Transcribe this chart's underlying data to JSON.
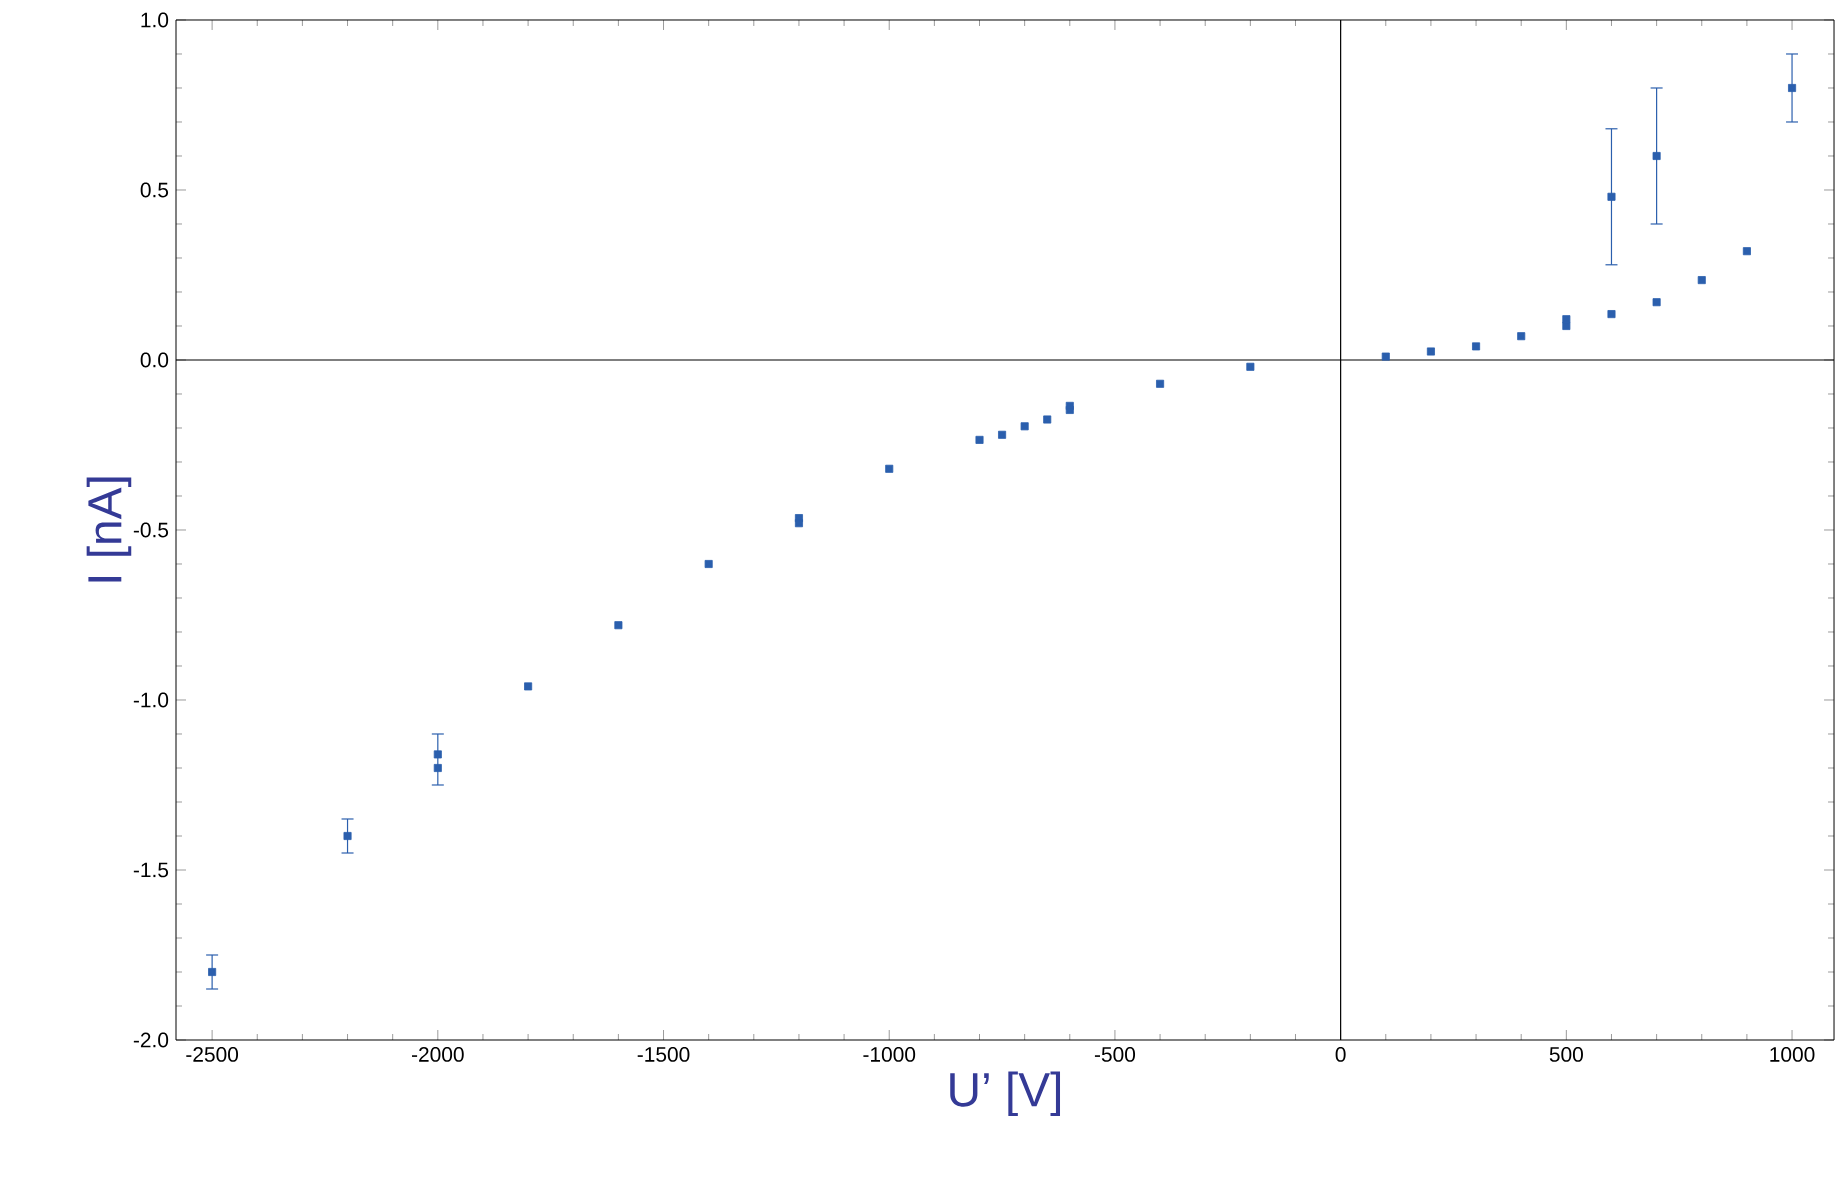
{
  "chart_data": {
    "type": "scatter",
    "xlabel": "U’ [V]",
    "ylabel": "I [nA]",
    "xlim": [
      -2580,
      1093
    ],
    "ylim": [
      -2.0,
      1.0
    ],
    "xticks": [
      -2500,
      -2000,
      -1500,
      -1000,
      -500,
      0,
      500,
      1000
    ],
    "yticks": [
      {
        "value": -2.0,
        "label": "-2.0"
      },
      {
        "value": -1.5,
        "label": "-1.5"
      },
      {
        "value": -1.0,
        "label": "-1.0"
      },
      {
        "value": -0.5,
        "label": "-0.5"
      },
      {
        "value": 0,
        "label": "0.0"
      },
      {
        "value": 0.5,
        "label": "0.5"
      },
      {
        "value": 1.0,
        "label": "1.0"
      }
    ],
    "marker": "square",
    "series": [
      {
        "color": "#2b5fad",
        "x": [
          -2500,
          -2200,
          -2000,
          -2000,
          -1800,
          -1600,
          -1400,
          -1200,
          -1200,
          -1000,
          -800,
          -750,
          -700,
          -650,
          -600,
          -600,
          -400,
          -200,
          100,
          200,
          300,
          400,
          500,
          500,
          600,
          600,
          700,
          700,
          800,
          900,
          1000
        ],
        "values": [
          -1.8,
          -1.4,
          -1.16,
          -1.2,
          -0.96,
          -0.78,
          -0.6,
          -0.465,
          -0.48,
          -0.32,
          -0.235,
          -0.22,
          -0.195,
          -0.175,
          -0.147,
          -0.135,
          -0.07,
          -0.02,
          0.01,
          0.025,
          0.04,
          0.07,
          0.1,
          0.12,
          0.135,
          0.48,
          0.17,
          0.6,
          0.235,
          0.32,
          0.8
        ],
        "errors": [
          0.05,
          0.05,
          [
            -1.25,
            -1.1
          ],
          null,
          null,
          null,
          null,
          null,
          null,
          null,
          null,
          null,
          null,
          null,
          null,
          null,
          null,
          null,
          null,
          null,
          null,
          null,
          null,
          null,
          null,
          [
            0.28,
            0.68
          ],
          null,
          [
            0.4,
            0.8
          ],
          null,
          null,
          [
            0.7,
            0.9
          ]
        ]
      }
    ]
  }
}
